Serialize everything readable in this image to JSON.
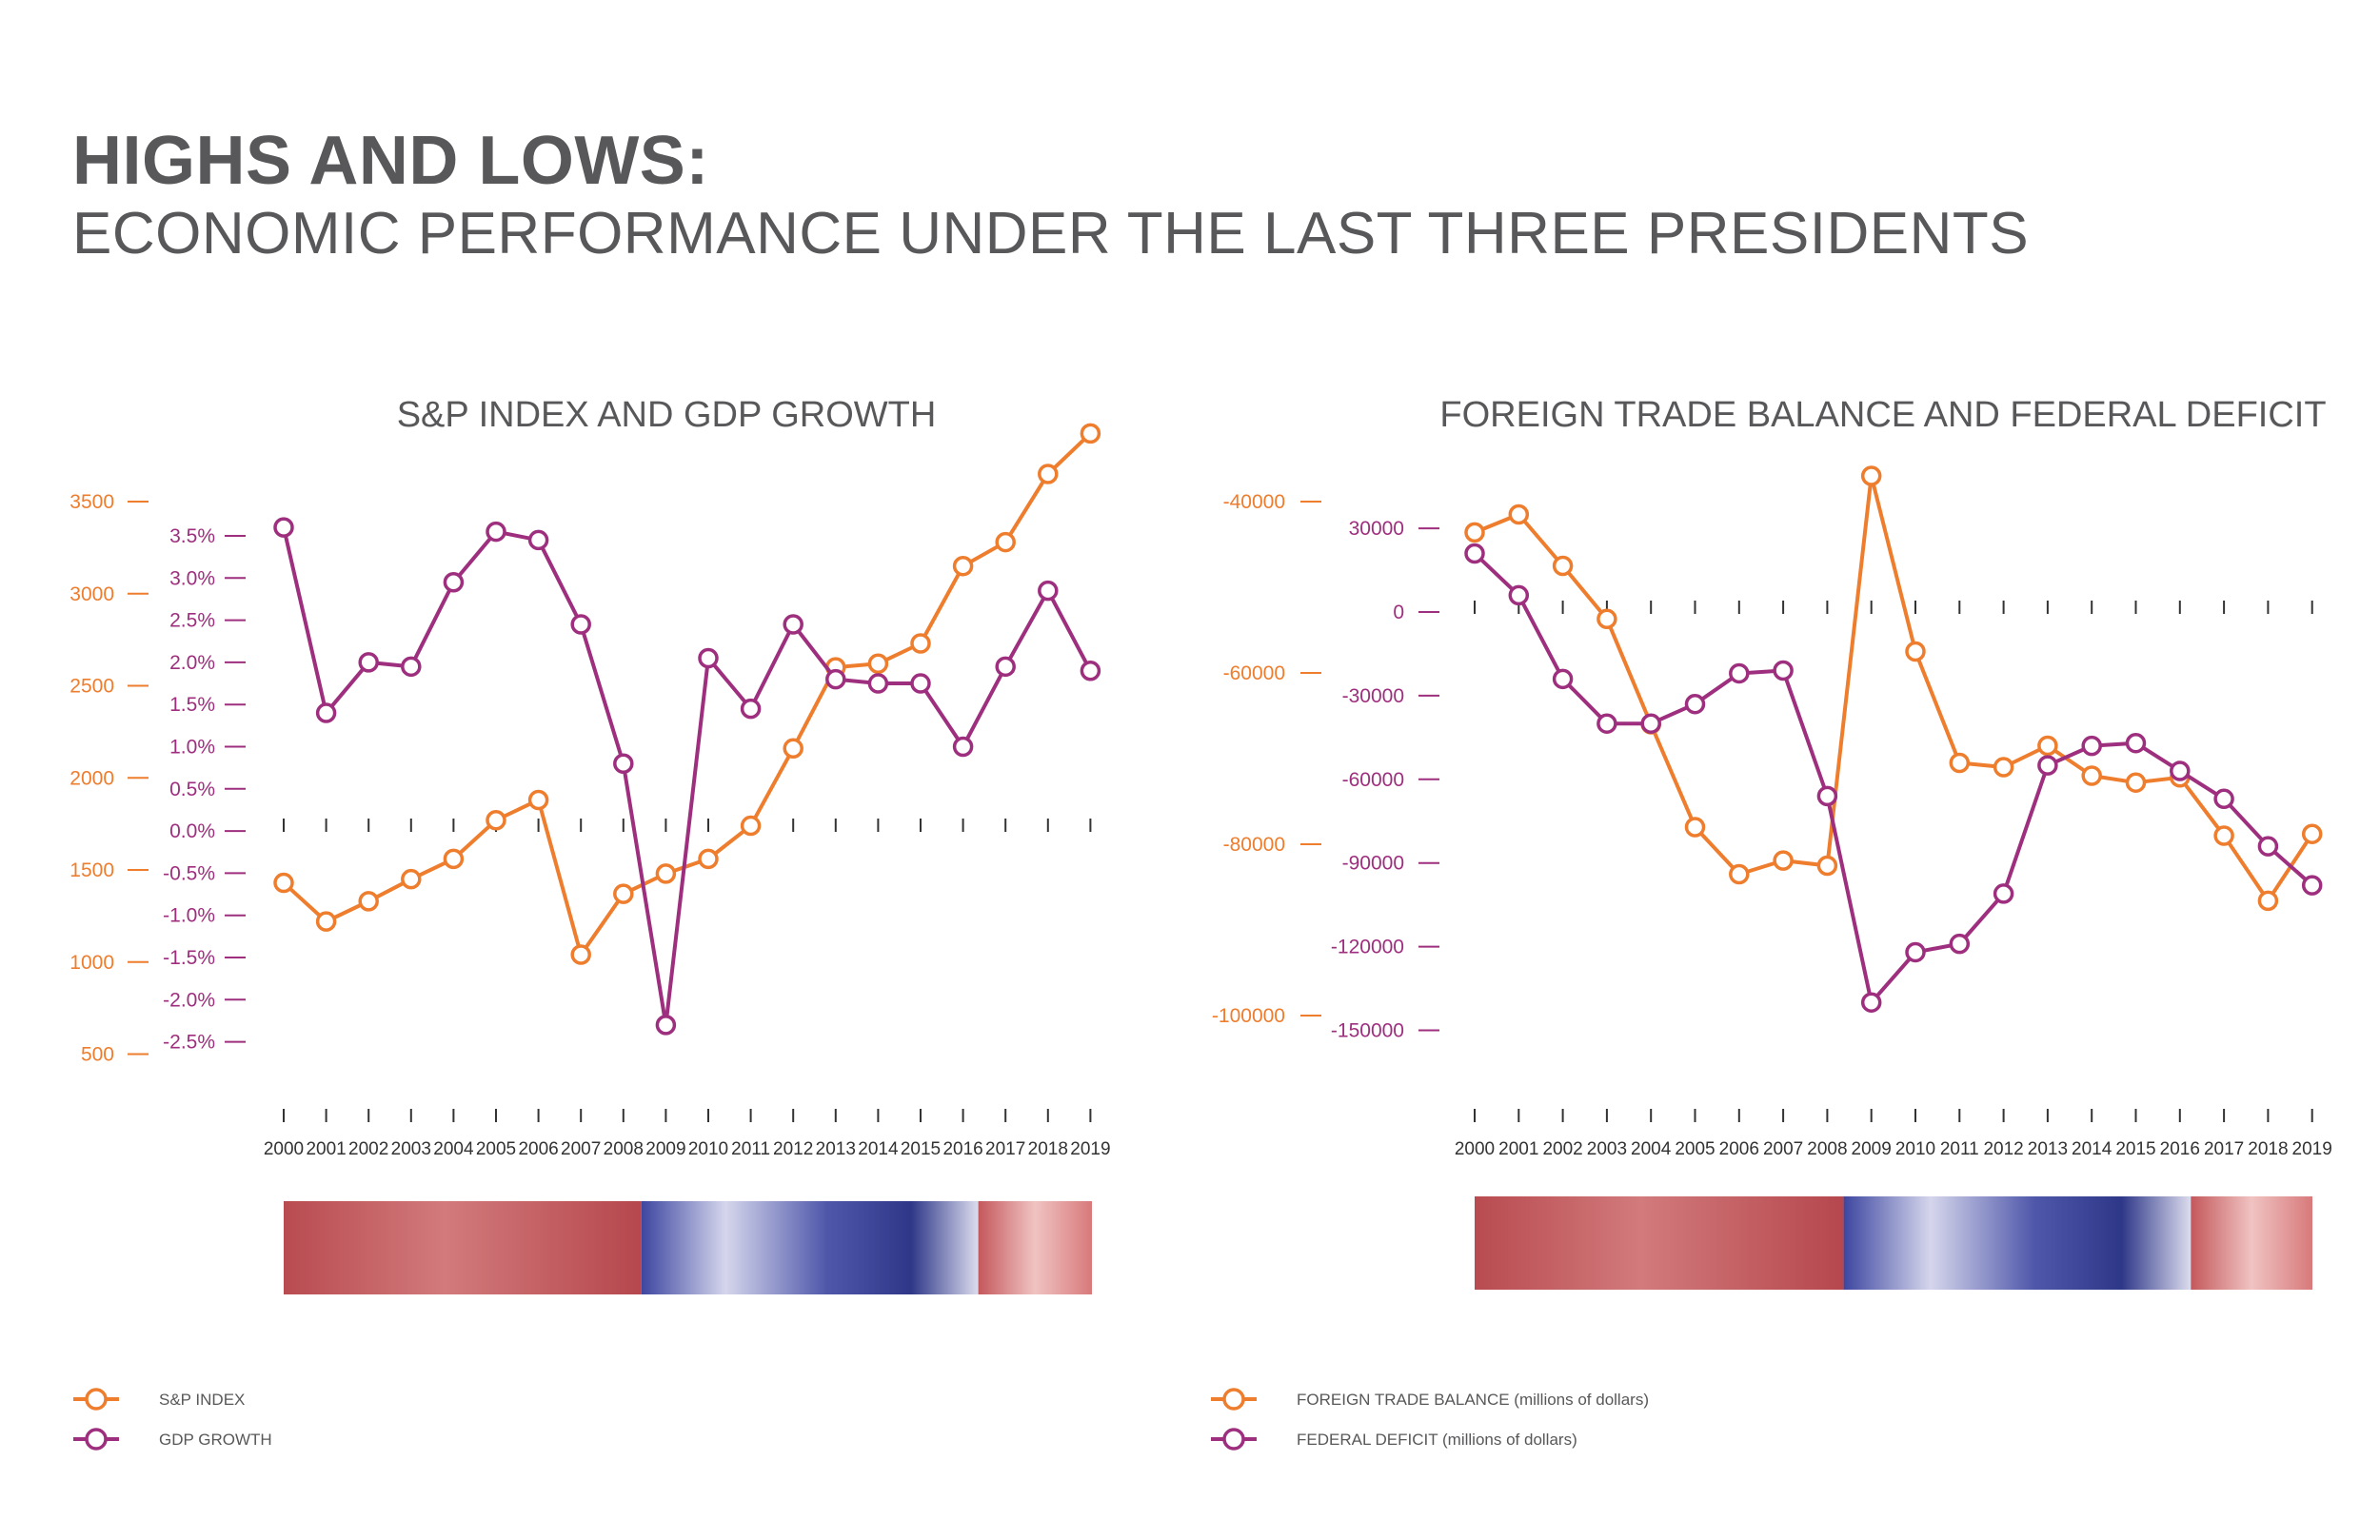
{
  "header": {
    "title": "HIGHS AND LOWS:",
    "subtitle": "ECONOMIC PERFORMANCE UNDER THE LAST THREE PRESIDENTS"
  },
  "colors": {
    "orange": "#ee7d2d",
    "purple": "#9e2f7e",
    "text": "#58585a",
    "bush_panel": "#c25a5e",
    "obama_panel": "#5a5fae",
    "trump_panel": "#d7787a"
  },
  "chart_data": [
    {
      "type": "line",
      "title": "S&P INDEX AND GDP GROWTH",
      "x": [
        "2000",
        "2001",
        "2002",
        "2003",
        "2004",
        "2005",
        "2006",
        "2007",
        "2008",
        "2009",
        "2010",
        "2011",
        "2012",
        "2013",
        "2014",
        "2015",
        "2016",
        "2017",
        "2018",
        "2019"
      ],
      "series": [
        {
          "name": "S&P INDEX",
          "axis": "left",
          "color": "#ee7d2d",
          "values": [
            1430,
            1220,
            1330,
            1450,
            1560,
            1770,
            1880,
            1040,
            1370,
            1480,
            1560,
            1740,
            2160,
            2600,
            2620,
            2730,
            3150,
            3280,
            3650,
            3870
          ]
        },
        {
          "name": "GDP GROWTH",
          "axis": "right",
          "color": "#9e2f7e",
          "values": [
            3.6,
            1.4,
            2.0,
            1.95,
            2.95,
            3.55,
            3.45,
            2.45,
            0.8,
            -2.3,
            2.05,
            1.45,
            2.45,
            1.8,
            1.75,
            1.75,
            1.0,
            1.95,
            2.85,
            1.9
          ]
        }
      ],
      "left_axis": {
        "label": "",
        "ticks": [
          "3500",
          "3000",
          "2500",
          "2000",
          "1500",
          "1000",
          "500"
        ],
        "ylim": [
          500,
          3500
        ]
      },
      "right_axis": {
        "label": "",
        "ticks": [
          "3.5%",
          "3.0%",
          "2.5%",
          "2.0%",
          "1.5%",
          "1.0%",
          "0.5%",
          "0.0%",
          "-0.5%",
          "-1.0%",
          "-1.5%",
          "-2.0%",
          "-2.5%"
        ],
        "ylim": [
          -2.5,
          3.5
        ]
      },
      "grid": false,
      "legend": "bottom-left"
    },
    {
      "type": "line",
      "title": "FOREIGN TRADE BALANCE AND FEDERAL DEFICIT",
      "x": [
        "2000",
        "2001",
        "2002",
        "2003",
        "2004",
        "2005",
        "2006",
        "2007",
        "2008",
        "2009",
        "2010",
        "2011",
        "2012",
        "2013",
        "2014",
        "2015",
        "2016",
        "2017",
        "2018",
        "2019"
      ],
      "series": [
        {
          "name": "FOREIGN TRADE BALANCE (millions of dollars)",
          "axis": "left",
          "color": "#ee7d2d",
          "values": [
            -43600,
            -41500,
            -47500,
            -53700,
            -66000,
            -78000,
            -83500,
            -81900,
            -82500,
            -37000,
            -57500,
            -70500,
            -71000,
            -68500,
            -72000,
            -72800,
            -72200,
            -79000,
            -86600,
            -78800
          ]
        },
        {
          "name": "FEDERAL DEFICIT (millions of dollars)",
          "axis": "right",
          "color": "#9e2f7e",
          "values": [
            21000,
            6000,
            -24000,
            -40000,
            -40000,
            -33000,
            -22000,
            -21000,
            -66000,
            -140000,
            -122000,
            -119000,
            -101000,
            -55000,
            -48000,
            -47000,
            -57000,
            -67000,
            -84000,
            -98000
          ]
        }
      ],
      "left_axis": {
        "label": "",
        "ticks": [
          "-40000",
          "-60000",
          "-80000",
          "-100000"
        ],
        "ylim": [
          -100000,
          -40000
        ]
      },
      "right_axis": {
        "label": "",
        "ticks": [
          "30000",
          "0",
          "-30000",
          "-60000",
          "-90000",
          "-120000",
          "-150000"
        ],
        "ylim": [
          -150000,
          30000
        ]
      },
      "grid": false,
      "legend": "bottom-left"
    }
  ]
}
